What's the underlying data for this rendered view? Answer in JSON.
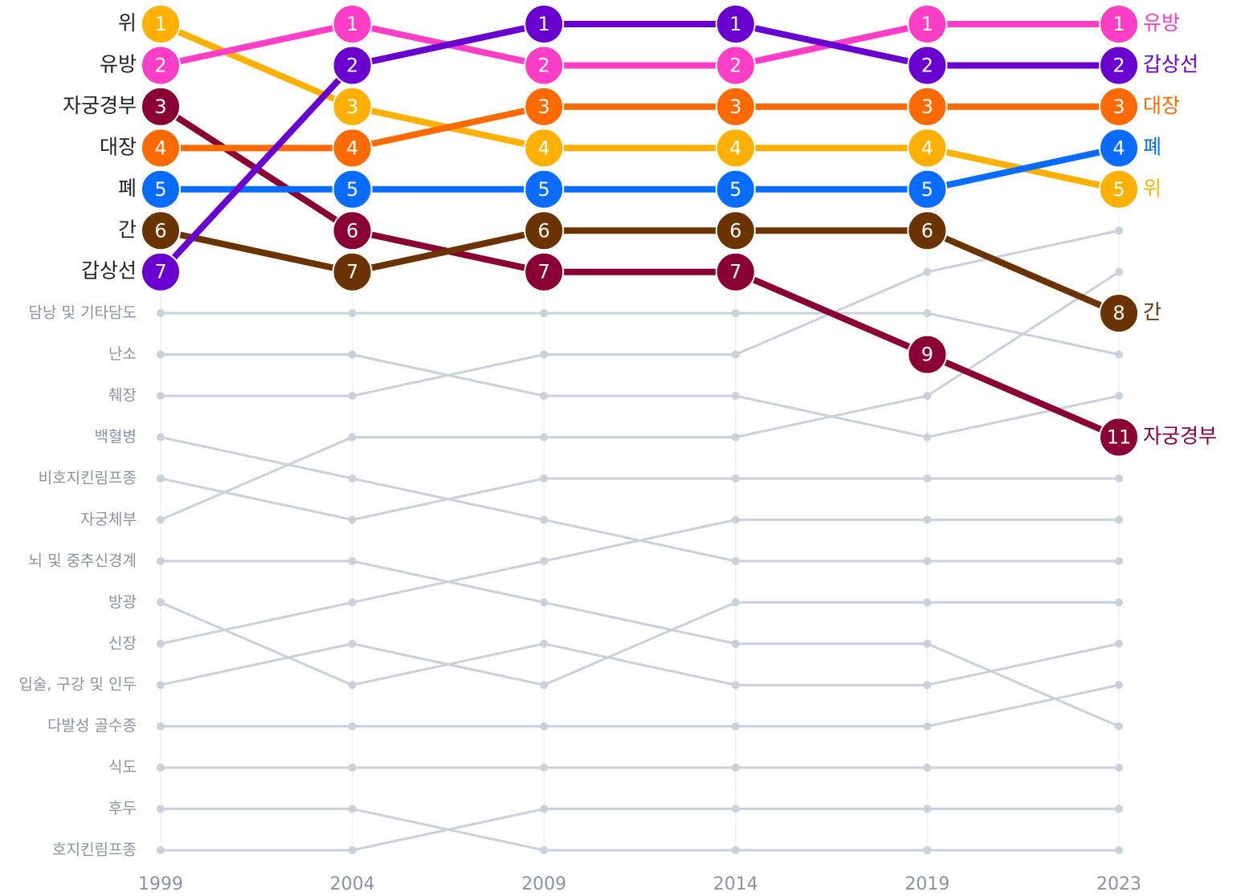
{
  "chart_data": {
    "type": "bump",
    "categories": [
      "1999",
      "2004",
      "2009",
      "2014",
      "2019",
      "2023"
    ],
    "ylim": [
      1,
      21
    ],
    "grid": true,
    "series": [
      {
        "name": "위",
        "color": "#ffb000",
        "values": [
          1,
          3,
          4,
          4,
          4,
          5
        ]
      },
      {
        "name": "유방",
        "color": "#ff3ec8",
        "values": [
          2,
          1,
          2,
          2,
          1,
          1
        ]
      },
      {
        "name": "자궁경부",
        "color": "#8b0033",
        "values": [
          3,
          6,
          7,
          7,
          9,
          11
        ]
      },
      {
        "name": "대장",
        "color": "#ff6a00",
        "values": [
          4,
          4,
          3,
          3,
          3,
          3
        ]
      },
      {
        "name": "폐",
        "color": "#0a6cff",
        "values": [
          5,
          5,
          5,
          5,
          5,
          4
        ]
      },
      {
        "name": "간",
        "color": "#6b3300",
        "values": [
          6,
          7,
          6,
          6,
          6,
          8
        ]
      },
      {
        "name": "갑상선",
        "color": "#6a00d0",
        "values": [
          7,
          2,
          1,
          1,
          2,
          2
        ]
      }
    ],
    "other_color": "#c9d1dc",
    "other_series": [
      {
        "name": "담낭 및 기타담도",
        "values": [
          8,
          8,
          8,
          8,
          8,
          9
        ]
      },
      {
        "name": "난소",
        "values": [
          9,
          9,
          10,
          10,
          11,
          10
        ]
      },
      {
        "name": "췌장",
        "values": [
          10,
          10,
          9,
          9,
          7,
          6
        ]
      },
      {
        "name": "백혈병",
        "values": [
          11,
          12,
          13,
          14,
          14,
          14
        ]
      },
      {
        "name": "비호지킨림프종",
        "values": [
          12,
          13,
          12,
          12,
          12,
          12
        ]
      },
      {
        "name": "자궁체부",
        "values": [
          13,
          11,
          11,
          11,
          10,
          7
        ]
      },
      {
        "name": "뇌 및 중추신경계",
        "values": [
          14,
          14,
          15,
          16,
          16,
          18
        ]
      },
      {
        "name": "방광",
        "values": [
          15,
          17,
          16,
          17,
          17,
          16
        ]
      },
      {
        "name": "신장",
        "values": [
          16,
          15,
          14,
          13,
          13,
          13
        ]
      },
      {
        "name": "입술, 구강 및 인두",
        "values": [
          17,
          16,
          17,
          15,
          15,
          15
        ]
      },
      {
        "name": "다발성 골수종",
        "values": [
          18,
          18,
          18,
          18,
          18,
          17
        ]
      },
      {
        "name": "식도",
        "values": [
          19,
          19,
          19,
          19,
          19,
          19
        ]
      },
      {
        "name": "후두",
        "values": [
          20,
          20,
          21,
          21,
          21,
          21
        ]
      },
      {
        "name": "호지킨림프종",
        "values": [
          21,
          21,
          20,
          20,
          20,
          20
        ]
      }
    ]
  }
}
